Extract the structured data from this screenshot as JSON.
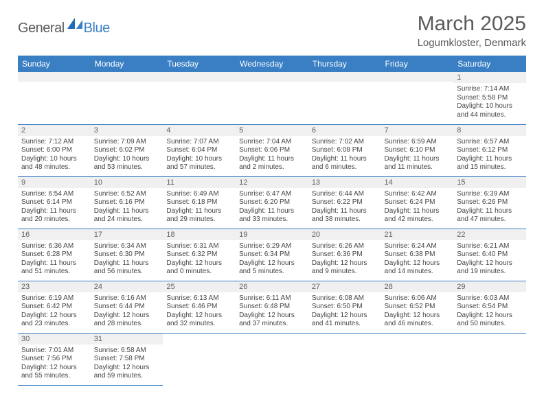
{
  "brand": {
    "part1": "General",
    "part2": "Blue"
  },
  "title": "March 2025",
  "location": "Logumkloster, Denmark",
  "colors": {
    "header_bg": "#3a7fc4",
    "header_text": "#ffffff",
    "daynum_bg": "#f0f0f0",
    "text": "#444444",
    "title_text": "#5a5a5a",
    "rule": "#3a7fc4"
  },
  "fonts": {
    "title_size": 30,
    "location_size": 15,
    "dayhead_size": 12,
    "body_size": 10
  },
  "layout": {
    "columns": 7,
    "rows": 6,
    "first_day_col_index": 6
  },
  "day_headers": [
    "Sunday",
    "Monday",
    "Tuesday",
    "Wednesday",
    "Thursday",
    "Friday",
    "Saturday"
  ],
  "days": [
    {
      "n": 1,
      "sunrise": "7:14 AM",
      "sunset": "5:58 PM",
      "daylight": "10 hours and 44 minutes."
    },
    {
      "n": 2,
      "sunrise": "7:12 AM",
      "sunset": "6:00 PM",
      "daylight": "10 hours and 48 minutes."
    },
    {
      "n": 3,
      "sunrise": "7:09 AM",
      "sunset": "6:02 PM",
      "daylight": "10 hours and 53 minutes."
    },
    {
      "n": 4,
      "sunrise": "7:07 AM",
      "sunset": "6:04 PM",
      "daylight": "10 hours and 57 minutes."
    },
    {
      "n": 5,
      "sunrise": "7:04 AM",
      "sunset": "6:06 PM",
      "daylight": "11 hours and 2 minutes."
    },
    {
      "n": 6,
      "sunrise": "7:02 AM",
      "sunset": "6:08 PM",
      "daylight": "11 hours and 6 minutes."
    },
    {
      "n": 7,
      "sunrise": "6:59 AM",
      "sunset": "6:10 PM",
      "daylight": "11 hours and 11 minutes."
    },
    {
      "n": 8,
      "sunrise": "6:57 AM",
      "sunset": "6:12 PM",
      "daylight": "11 hours and 15 minutes."
    },
    {
      "n": 9,
      "sunrise": "6:54 AM",
      "sunset": "6:14 PM",
      "daylight": "11 hours and 20 minutes."
    },
    {
      "n": 10,
      "sunrise": "6:52 AM",
      "sunset": "6:16 PM",
      "daylight": "11 hours and 24 minutes."
    },
    {
      "n": 11,
      "sunrise": "6:49 AM",
      "sunset": "6:18 PM",
      "daylight": "11 hours and 29 minutes."
    },
    {
      "n": 12,
      "sunrise": "6:47 AM",
      "sunset": "6:20 PM",
      "daylight": "11 hours and 33 minutes."
    },
    {
      "n": 13,
      "sunrise": "6:44 AM",
      "sunset": "6:22 PM",
      "daylight": "11 hours and 38 minutes."
    },
    {
      "n": 14,
      "sunrise": "6:42 AM",
      "sunset": "6:24 PM",
      "daylight": "11 hours and 42 minutes."
    },
    {
      "n": 15,
      "sunrise": "6:39 AM",
      "sunset": "6:26 PM",
      "daylight": "11 hours and 47 minutes."
    },
    {
      "n": 16,
      "sunrise": "6:36 AM",
      "sunset": "6:28 PM",
      "daylight": "11 hours and 51 minutes."
    },
    {
      "n": 17,
      "sunrise": "6:34 AM",
      "sunset": "6:30 PM",
      "daylight": "11 hours and 56 minutes."
    },
    {
      "n": 18,
      "sunrise": "6:31 AM",
      "sunset": "6:32 PM",
      "daylight": "12 hours and 0 minutes."
    },
    {
      "n": 19,
      "sunrise": "6:29 AM",
      "sunset": "6:34 PM",
      "daylight": "12 hours and 5 minutes."
    },
    {
      "n": 20,
      "sunrise": "6:26 AM",
      "sunset": "6:36 PM",
      "daylight": "12 hours and 9 minutes."
    },
    {
      "n": 21,
      "sunrise": "6:24 AM",
      "sunset": "6:38 PM",
      "daylight": "12 hours and 14 minutes."
    },
    {
      "n": 22,
      "sunrise": "6:21 AM",
      "sunset": "6:40 PM",
      "daylight": "12 hours and 19 minutes."
    },
    {
      "n": 23,
      "sunrise": "6:19 AM",
      "sunset": "6:42 PM",
      "daylight": "12 hours and 23 minutes."
    },
    {
      "n": 24,
      "sunrise": "6:16 AM",
      "sunset": "6:44 PM",
      "daylight": "12 hours and 28 minutes."
    },
    {
      "n": 25,
      "sunrise": "6:13 AM",
      "sunset": "6:46 PM",
      "daylight": "12 hours and 32 minutes."
    },
    {
      "n": 26,
      "sunrise": "6:11 AM",
      "sunset": "6:48 PM",
      "daylight": "12 hours and 37 minutes."
    },
    {
      "n": 27,
      "sunrise": "6:08 AM",
      "sunset": "6:50 PM",
      "daylight": "12 hours and 41 minutes."
    },
    {
      "n": 28,
      "sunrise": "6:06 AM",
      "sunset": "6:52 PM",
      "daylight": "12 hours and 46 minutes."
    },
    {
      "n": 29,
      "sunrise": "6:03 AM",
      "sunset": "6:54 PM",
      "daylight": "12 hours and 50 minutes."
    },
    {
      "n": 30,
      "sunrise": "7:01 AM",
      "sunset": "7:56 PM",
      "daylight": "12 hours and 55 minutes."
    },
    {
      "n": 31,
      "sunrise": "6:58 AM",
      "sunset": "7:58 PM",
      "daylight": "12 hours and 59 minutes."
    }
  ],
  "labels": {
    "sunrise": "Sunrise:",
    "sunset": "Sunset:",
    "daylight": "Daylight:"
  }
}
